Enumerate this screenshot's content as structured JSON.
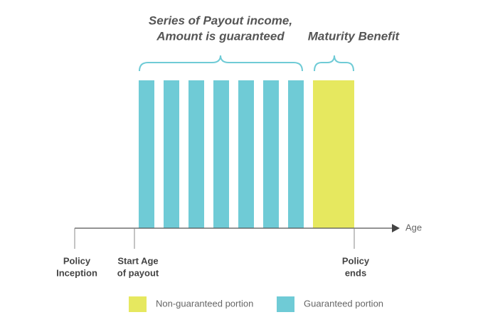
{
  "header": {
    "series_title": [
      "Series of Payout income,",
      "Amount is guaranteed"
    ],
    "maturity_title": "Maturity Benefit"
  },
  "axis": {
    "label": "Age",
    "milestones": [
      {
        "lines": [
          "Policy",
          "Inception"
        ]
      },
      {
        "lines": [
          "Start Age",
          "of payout"
        ]
      },
      {
        "lines": [
          "Policy",
          "ends"
        ]
      }
    ]
  },
  "legend": {
    "items": [
      "Non-guaranteed portion",
      "Guaranteed portion"
    ]
  }
}
